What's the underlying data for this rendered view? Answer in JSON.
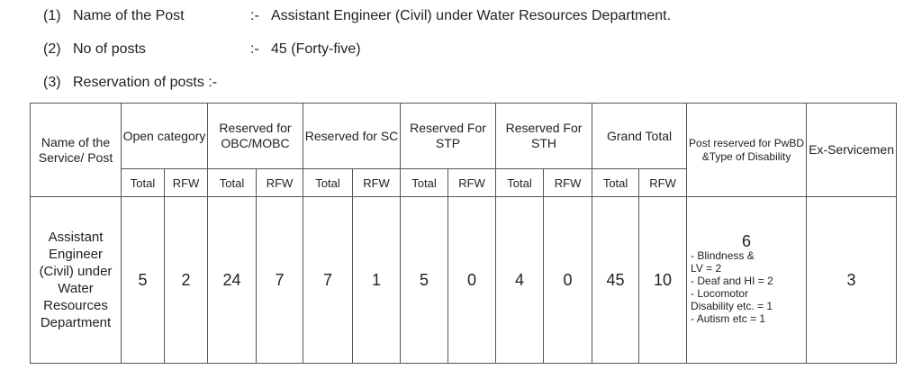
{
  "info": [
    {
      "num": "(1)",
      "label": "Name of the Post",
      "sep": ":-",
      "value": "Assistant Engineer (Civil)  under  Water Resources Department."
    },
    {
      "num": "(2)",
      "label": "No of posts",
      "sep": ":-",
      "value": "45 (Forty-five)"
    },
    {
      "num": "(3)",
      "label": "Reservation of posts :-",
      "sep": "",
      "value": ""
    }
  ],
  "table": {
    "headers": {
      "name": "Name of the Service/ Post",
      "open": "Open category",
      "obc": "Reserved for OBC/MOBC",
      "sc": "Reserved for SC",
      "stp": "Reserved For STP",
      "sth": "Reserved For STH",
      "grand": "Grand Total",
      "pwbd": "Post reserved for PwBD &Type of Disability",
      "ex": "Ex-Servicemen",
      "total": "Total",
      "rfw": "RFW"
    },
    "row": {
      "service": "Assistant Engineer (Civil) under Water Resources Department",
      "open_total": "5",
      "open_rfw": "2",
      "obc_total": "24",
      "obc_rfw": "7",
      "sc_total": "7",
      "sc_rfw": "1",
      "stp_total": "5",
      "stp_rfw": "0",
      "sth_total": "4",
      "sth_rfw": "0",
      "grand_total": "45",
      "grand_rfw": "10",
      "pwbd_count": "6",
      "pwbd_lines": [
        "- Blindness &",
        "   LV = 2",
        "- Deaf and HI = 2",
        "- Locomotor",
        "  Disability etc. = 1",
        "- Autism etc = 1"
      ],
      "ex": "3"
    }
  }
}
